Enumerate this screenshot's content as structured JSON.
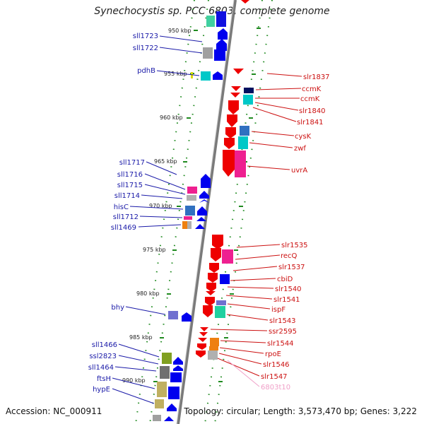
{
  "title": "Synechocystis sp. PCC 6803, complete genome",
  "footer": {
    "accession": "Accession: NC_000911",
    "topology": "Topology: circular; Length: 3,573,470 bp; Genes: 3,222"
  },
  "scale_labels": [
    {
      "text": "950 kbp",
      "kbp": 950
    },
    {
      "text": "955 kbp",
      "kbp": 955
    },
    {
      "text": "960 kbp",
      "kbp": 960
    },
    {
      "text": "965 kbp",
      "kbp": 965
    },
    {
      "text": "970 kbp",
      "kbp": 970
    },
    {
      "text": "975 kbp",
      "kbp": 975
    },
    {
      "text": "980 kbp",
      "kbp": 980
    },
    {
      "text": "985 kbp",
      "kbp": 985
    },
    {
      "text": "990 kbp",
      "kbp": 990
    }
  ],
  "left_genes": [
    "sll1723",
    "sll1722",
    "pdhB",
    "sll1717",
    "sll1716",
    "sll1715",
    "sll1714",
    "hisC",
    "sll1712",
    "sll1469",
    "bhy",
    "sll1466",
    "ssl2823",
    "sll1464",
    "ftsH",
    "hypE"
  ],
  "right_genes": [
    "slr1837",
    "ccmK",
    "ccmK",
    "slr1840",
    "slr1841",
    "cysK",
    "zwf",
    "uvrA",
    "slr1535",
    "recQ",
    "slr1537",
    "cbiD",
    "slr1540",
    "slr1541",
    "ispF",
    "slr1543",
    "ssr2595",
    "slr1544",
    "rpoE",
    "slr1546",
    "slr1547",
    "6803t10"
  ],
  "colors": {
    "forward_strand": "#0000ee",
    "reverse_strand": "#ee0000",
    "trna": "#f0a0c8",
    "backbone": "#888888",
    "ticks": "#228b22"
  }
}
